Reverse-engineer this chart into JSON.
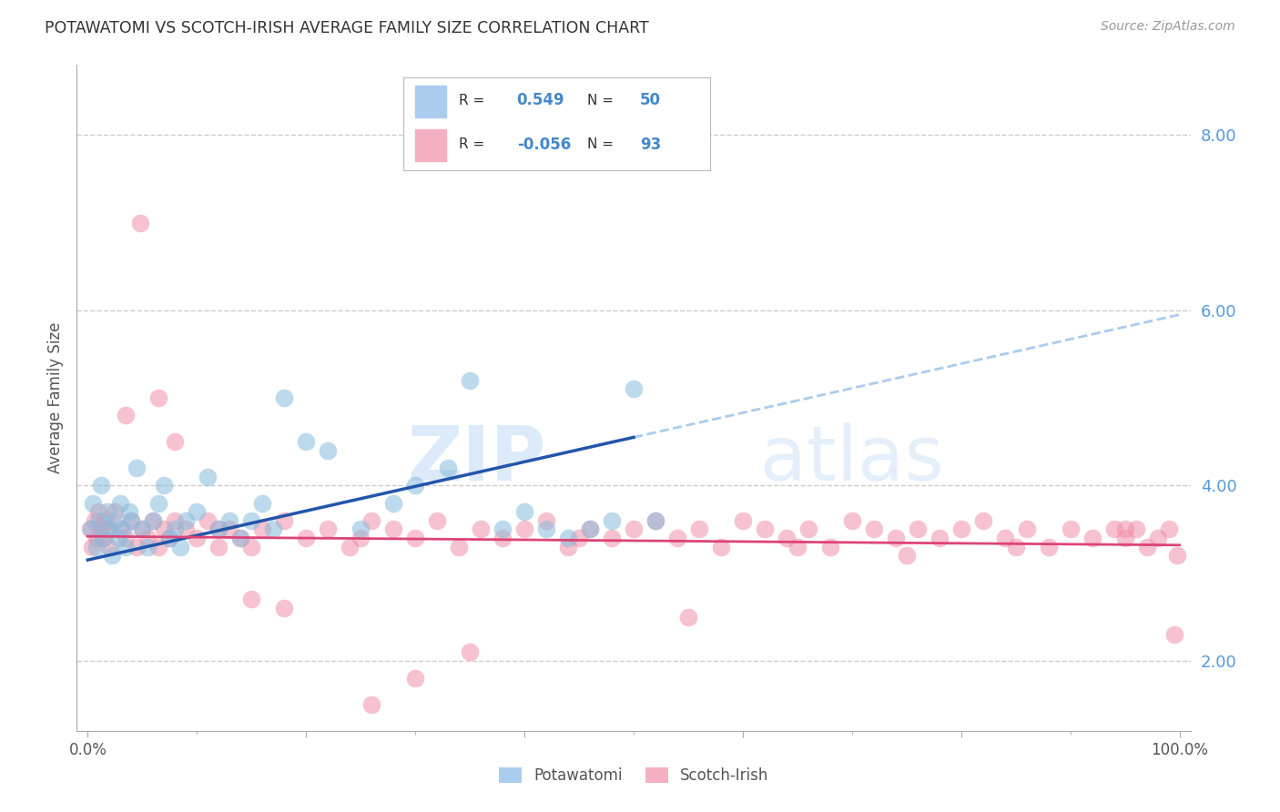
{
  "title": "POTAWATOMI VS SCOTCH-IRISH AVERAGE FAMILY SIZE CORRELATION CHART",
  "source": "Source: ZipAtlas.com",
  "ylabel": "Average Family Size",
  "right_yticks": [
    2.0,
    4.0,
    6.0,
    8.0
  ],
  "potawatomi_color": "#88bbdd",
  "scotch_irish_color": "#f090a8",
  "potawatomi_line_color": "#2255aa",
  "scotch_irish_line_color": "#dd4477",
  "trend_ext_color": "#aaccee",
  "background_color": "#ffffff",
  "grid_color": "#cccccc",
  "legend_R1": "0.549",
  "legend_N1": "50",
  "legend_R2": "-0.056",
  "legend_N2": "93",
  "legend_color1": "#aaccee",
  "legend_color2": "#f4b0c0",
  "value_color": "#4488cc",
  "potawatomi_x": [
    0.3,
    0.5,
    0.8,
    1.0,
    1.2,
    1.5,
    1.8,
    2.0,
    2.2,
    2.5,
    2.8,
    3.0,
    3.2,
    3.5,
    3.8,
    4.0,
    4.5,
    5.0,
    5.5,
    6.0,
    6.5,
    7.0,
    7.5,
    8.0,
    8.5,
    9.0,
    10.0,
    11.0,
    12.0,
    13.0,
    14.0,
    15.0,
    16.0,
    17.0,
    18.0,
    20.0,
    22.0,
    25.0,
    28.0,
    30.0,
    33.0,
    35.0,
    38.0,
    40.0,
    42.0,
    44.0,
    46.0,
    48.0,
    50.0,
    52.0
  ],
  "potawatomi_y": [
    3.5,
    3.8,
    3.3,
    3.6,
    4.0,
    3.4,
    3.7,
    3.5,
    3.2,
    3.6,
    3.4,
    3.8,
    3.5,
    3.3,
    3.7,
    3.6,
    4.2,
    3.5,
    3.3,
    3.6,
    3.8,
    4.0,
    3.4,
    3.5,
    3.3,
    3.6,
    3.7,
    4.1,
    3.5,
    3.6,
    3.4,
    3.6,
    3.8,
    3.5,
    5.0,
    4.5,
    4.4,
    3.5,
    3.8,
    4.0,
    4.2,
    5.2,
    3.5,
    3.7,
    3.5,
    3.4,
    3.5,
    3.6,
    5.1,
    3.6
  ],
  "scotch_irish_x": [
    0.2,
    0.4,
    0.6,
    0.8,
    1.0,
    1.2,
    1.4,
    1.6,
    1.8,
    2.0,
    2.5,
    3.0,
    3.5,
    4.0,
    4.5,
    5.0,
    5.5,
    6.0,
    6.5,
    7.0,
    7.5,
    8.0,
    9.0,
    10.0,
    11.0,
    12.0,
    13.0,
    14.0,
    15.0,
    16.0,
    18.0,
    20.0,
    22.0,
    24.0,
    26.0,
    28.0,
    30.0,
    32.0,
    34.0,
    36.0,
    38.0,
    40.0,
    42.0,
    44.0,
    46.0,
    48.0,
    50.0,
    52.0,
    54.0,
    56.0,
    58.0,
    60.0,
    62.0,
    64.0,
    66.0,
    68.0,
    70.0,
    72.0,
    74.0,
    76.0,
    78.0,
    80.0,
    82.0,
    84.0,
    86.0,
    88.0,
    90.0,
    92.0,
    94.0,
    95.0,
    96.0,
    97.0,
    98.0,
    99.0,
    99.5,
    3.5,
    4.8,
    6.5,
    8.0,
    12.0,
    15.0,
    18.0,
    25.0,
    30.0,
    35.0,
    45.0,
    55.0,
    65.0,
    75.0,
    85.0,
    95.0,
    99.8,
    26.0
  ],
  "scotch_irish_y": [
    3.5,
    3.3,
    3.6,
    3.4,
    3.7,
    3.5,
    3.4,
    3.6,
    3.5,
    3.3,
    3.7,
    3.5,
    3.4,
    3.6,
    3.3,
    3.5,
    3.4,
    3.6,
    3.3,
    3.5,
    3.4,
    3.6,
    3.5,
    3.4,
    3.6,
    3.3,
    3.5,
    3.4,
    3.3,
    3.5,
    3.6,
    3.4,
    3.5,
    3.3,
    3.6,
    3.5,
    3.4,
    3.6,
    3.3,
    3.5,
    3.4,
    3.5,
    3.6,
    3.3,
    3.5,
    3.4,
    3.5,
    3.6,
    3.4,
    3.5,
    3.3,
    3.6,
    3.5,
    3.4,
    3.5,
    3.3,
    3.6,
    3.5,
    3.4,
    3.5,
    3.4,
    3.5,
    3.6,
    3.4,
    3.5,
    3.3,
    3.5,
    3.4,
    3.5,
    3.4,
    3.5,
    3.3,
    3.4,
    3.5,
    2.3,
    4.8,
    7.0,
    5.0,
    4.5,
    3.5,
    2.7,
    2.6,
    3.4,
    1.8,
    2.1,
    3.4,
    2.5,
    3.3,
    3.2,
    3.3,
    3.5,
    3.2,
    1.5
  ]
}
